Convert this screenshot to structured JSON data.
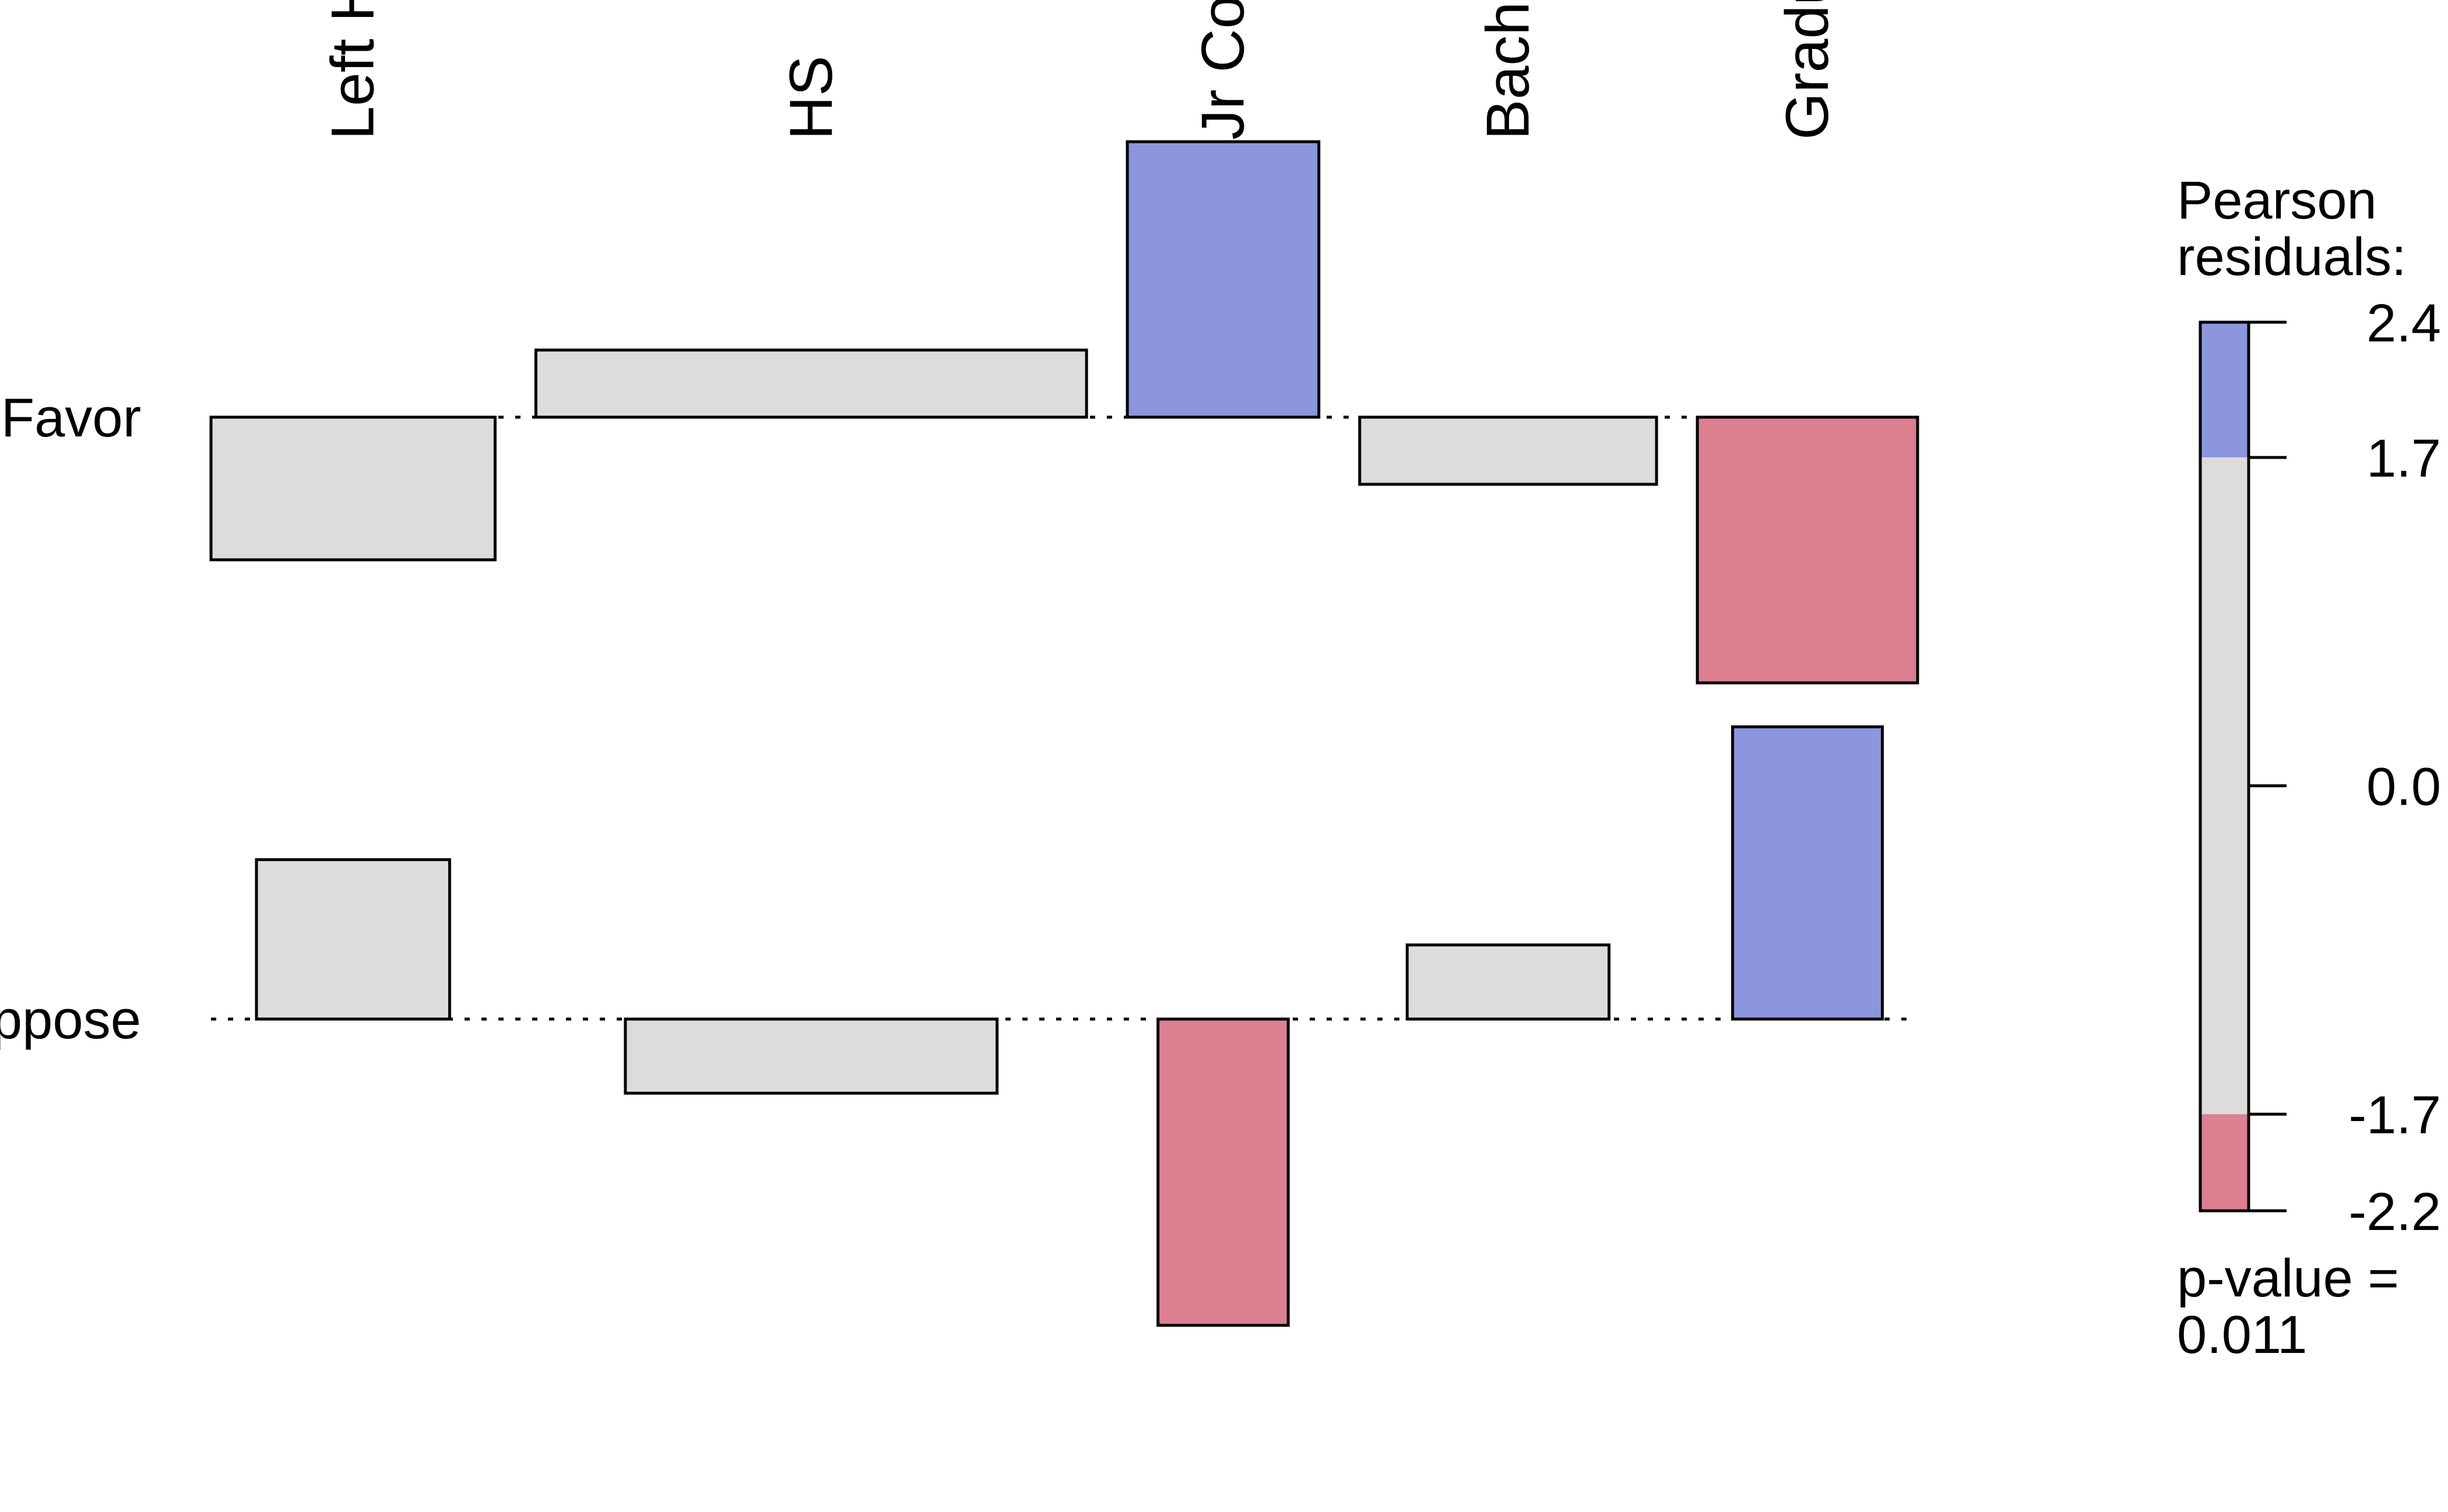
{
  "chart_data": {
    "type": "association_plot",
    "title": "",
    "columns": [
      "Left HS",
      "HS",
      "Jr Col",
      "Bachelor",
      "Graduate"
    ],
    "column_label_shown": [
      "Left H",
      "HS",
      "Jr Co",
      "Bache",
      "Gradu"
    ],
    "rows": [
      "Favor",
      "Oppose"
    ],
    "row_label_shown": [
      "Favor",
      "ppose"
    ],
    "expected_share": [
      0.178,
      0.345,
      0.12,
      0.186,
      0.138
    ],
    "residuals": [
      [
        -1.02,
        0.48,
        1.97,
        -0.48,
        -1.9
      ],
      [
        1.14,
        -0.53,
        -2.19,
        0.53,
        2.09
      ]
    ],
    "legend": {
      "title_lines": [
        "Pearson",
        "residuals:"
      ],
      "ticks": [
        "2.4",
        "1.7",
        "0.0",
        "-1.7",
        "-2.2"
      ],
      "tick_values": [
        2.4,
        1.7,
        0.0,
        -1.7,
        -2.2
      ],
      "range": [
        -2.2,
        2.4
      ],
      "shading_cutoff": 1.7
    },
    "p_value_lines": [
      "p-value =",
      "0.011"
    ],
    "colors": {
      "positive_strong": "#8c96dc",
      "negative_strong": "#dc7f90",
      "neutral": "#dcdcdc",
      "border": "#000000"
    }
  }
}
